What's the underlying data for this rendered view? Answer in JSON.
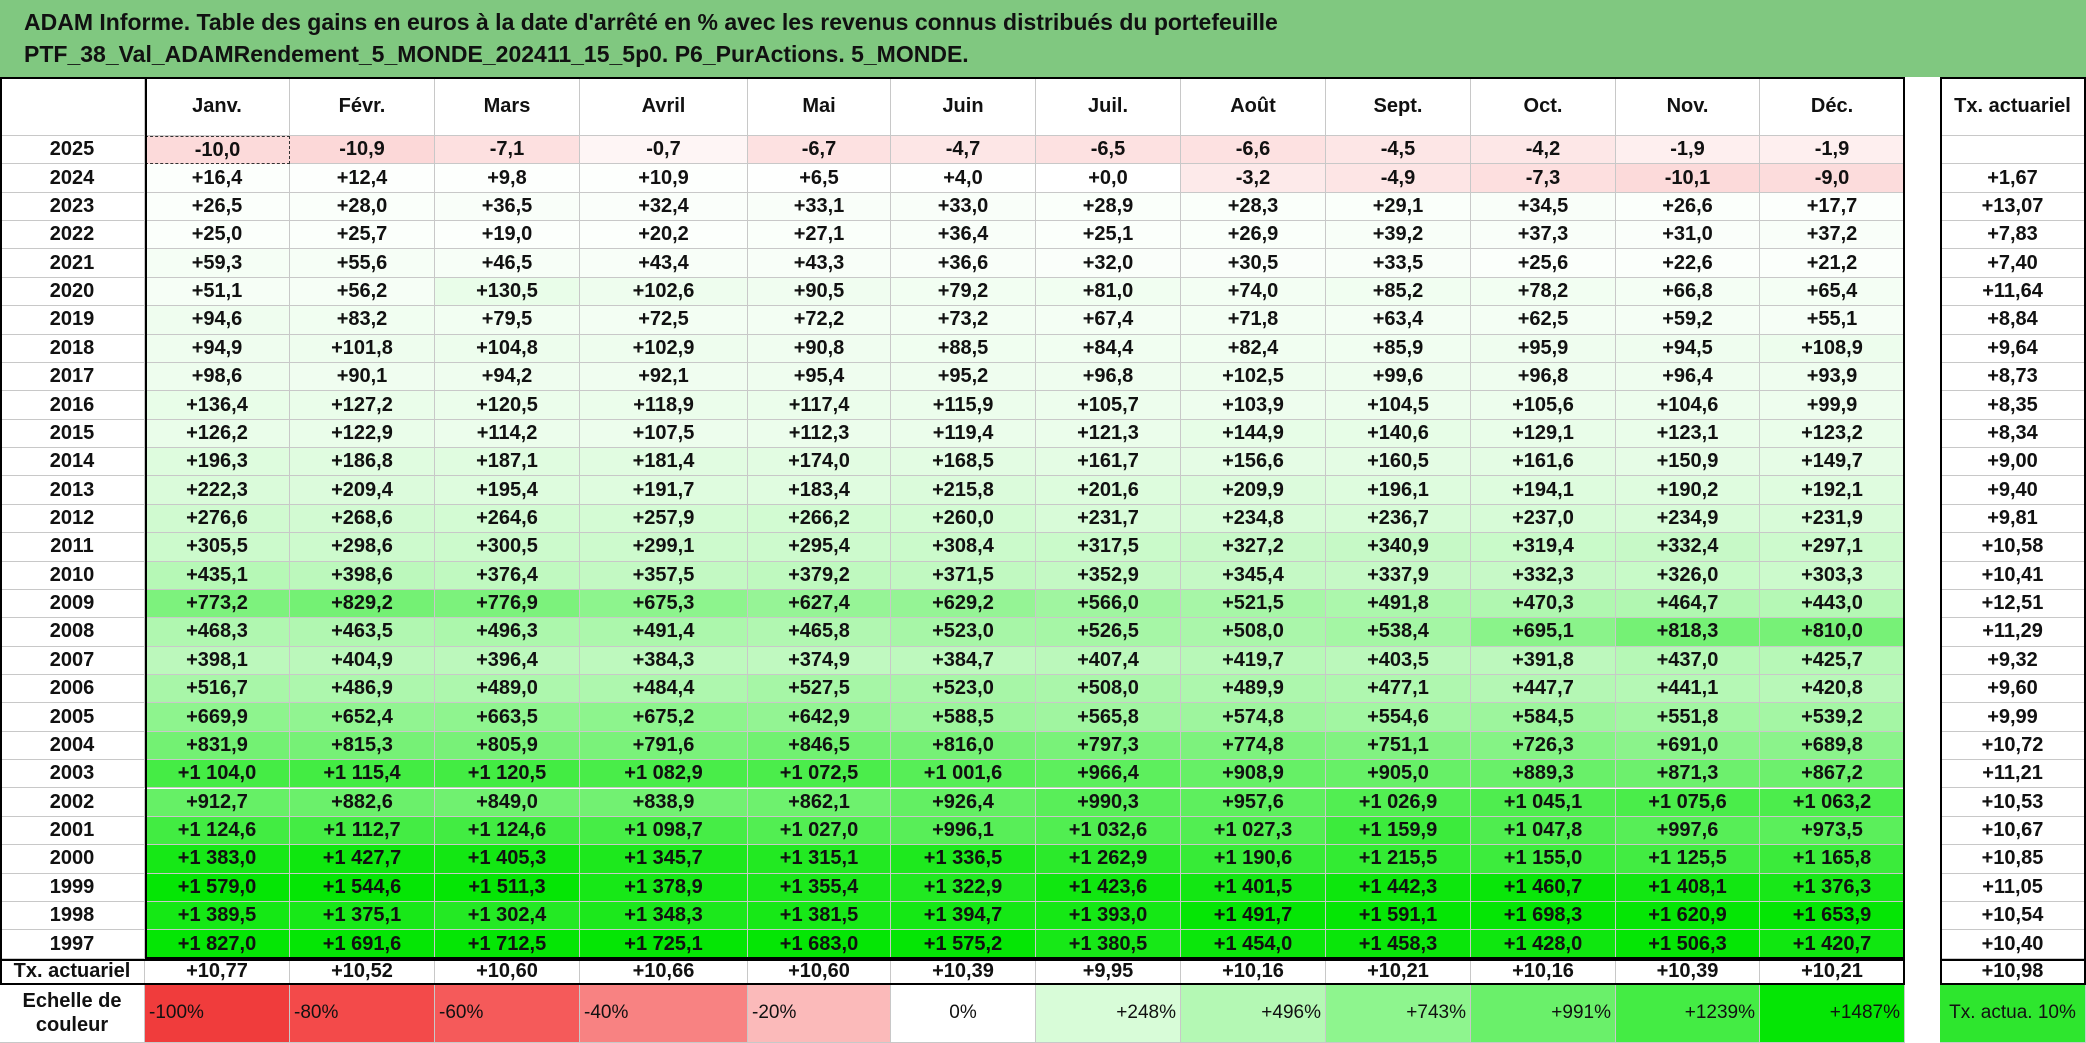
{
  "title": {
    "line1": "ADAM Informe. Table des gains en euros à la date d'arrêté en % avec les revenus connus distribués du portefeuille",
    "line2": "PTF_38_Val_ADAMRendement_5_MONDE_202411_15_5p0. P6_PurActions. 5_MONDE."
  },
  "header": {
    "months": [
      "Janv.",
      "Févr.",
      "Mars",
      "Avril",
      "Mai",
      "Juin",
      "Juil.",
      "Août",
      "Sept.",
      "Oct.",
      "Nov.",
      "Déc."
    ],
    "tx_label": "Tx. actuariel"
  },
  "rows": [
    {
      "year": "2025",
      "months": [
        "-10,0",
        "-10,9",
        "-7,1",
        "-0,7",
        "-6,7",
        "-4,7",
        "-6,5",
        "-6,6",
        "-4,5",
        "-4,2",
        "-1,9",
        "-1,9"
      ],
      "tx": null
    },
    {
      "year": "2024",
      "months": [
        "+16,4",
        "+12,4",
        "+9,8",
        "+10,9",
        "+6,5",
        "+4,0",
        "+0,0",
        "-3,2",
        "-4,9",
        "-7,3",
        "-10,1",
        "-9,0"
      ],
      "tx": "+1,67"
    },
    {
      "year": "2023",
      "months": [
        "+26,5",
        "+28,0",
        "+36,5",
        "+32,4",
        "+33,1",
        "+33,0",
        "+28,9",
        "+28,3",
        "+29,1",
        "+34,5",
        "+26,6",
        "+17,7"
      ],
      "tx": "+13,07"
    },
    {
      "year": "2022",
      "months": [
        "+25,0",
        "+25,7",
        "+19,0",
        "+20,2",
        "+27,1",
        "+36,4",
        "+25,1",
        "+26,9",
        "+39,2",
        "+37,3",
        "+31,0",
        "+37,2"
      ],
      "tx": "+7,83"
    },
    {
      "year": "2021",
      "months": [
        "+59,3",
        "+55,6",
        "+46,5",
        "+43,4",
        "+43,3",
        "+36,6",
        "+32,0",
        "+30,5",
        "+33,5",
        "+25,6",
        "+22,6",
        "+21,2"
      ],
      "tx": "+7,40"
    },
    {
      "year": "2020",
      "months": [
        "+51,1",
        "+56,2",
        "+130,5",
        "+102,6",
        "+90,5",
        "+79,2",
        "+81,0",
        "+74,0",
        "+85,2",
        "+78,2",
        "+66,8",
        "+65,4"
      ],
      "tx": "+11,64"
    },
    {
      "year": "2019",
      "months": [
        "+94,6",
        "+83,2",
        "+79,5",
        "+72,5",
        "+72,2",
        "+73,2",
        "+67,4",
        "+71,8",
        "+63,4",
        "+62,5",
        "+59,2",
        "+55,1"
      ],
      "tx": "+8,84"
    },
    {
      "year": "2018",
      "months": [
        "+94,9",
        "+101,8",
        "+104,8",
        "+102,9",
        "+90,8",
        "+88,5",
        "+84,4",
        "+82,4",
        "+85,9",
        "+95,9",
        "+94,5",
        "+108,9"
      ],
      "tx": "+9,64"
    },
    {
      "year": "2017",
      "months": [
        "+98,6",
        "+90,1",
        "+94,2",
        "+92,1",
        "+95,4",
        "+95,2",
        "+96,8",
        "+102,5",
        "+99,6",
        "+96,8",
        "+96,4",
        "+93,9"
      ],
      "tx": "+8,73"
    },
    {
      "year": "2016",
      "months": [
        "+136,4",
        "+127,2",
        "+120,5",
        "+118,9",
        "+117,4",
        "+115,9",
        "+105,7",
        "+103,9",
        "+104,5",
        "+105,6",
        "+104,6",
        "+99,9"
      ],
      "tx": "+8,35"
    },
    {
      "year": "2015",
      "months": [
        "+126,2",
        "+122,9",
        "+114,2",
        "+107,5",
        "+112,3",
        "+119,4",
        "+121,3",
        "+144,9",
        "+140,6",
        "+129,1",
        "+123,1",
        "+123,2"
      ],
      "tx": "+8,34"
    },
    {
      "year": "2014",
      "months": [
        "+196,3",
        "+186,8",
        "+187,1",
        "+181,4",
        "+174,0",
        "+168,5",
        "+161,7",
        "+156,6",
        "+160,5",
        "+161,6",
        "+150,9",
        "+149,7"
      ],
      "tx": "+9,00"
    },
    {
      "year": "2013",
      "months": [
        "+222,3",
        "+209,4",
        "+195,4",
        "+191,7",
        "+183,4",
        "+215,8",
        "+201,6",
        "+209,9",
        "+196,1",
        "+194,1",
        "+190,2",
        "+192,1"
      ],
      "tx": "+9,40"
    },
    {
      "year": "2012",
      "months": [
        "+276,6",
        "+268,6",
        "+264,6",
        "+257,9",
        "+266,2",
        "+260,0",
        "+231,7",
        "+234,8",
        "+236,7",
        "+237,0",
        "+234,9",
        "+231,9"
      ],
      "tx": "+9,81"
    },
    {
      "year": "2011",
      "months": [
        "+305,5",
        "+298,6",
        "+300,5",
        "+299,1",
        "+295,4",
        "+308,4",
        "+317,5",
        "+327,2",
        "+340,9",
        "+319,4",
        "+332,4",
        "+297,1"
      ],
      "tx": "+10,58"
    },
    {
      "year": "2010",
      "months": [
        "+435,1",
        "+398,6",
        "+376,4",
        "+357,5",
        "+379,2",
        "+371,5",
        "+352,9",
        "+345,4",
        "+337,9",
        "+332,3",
        "+326,0",
        "+303,3"
      ],
      "tx": "+10,41"
    },
    {
      "year": "2009",
      "months": [
        "+773,2",
        "+829,2",
        "+776,9",
        "+675,3",
        "+627,4",
        "+629,2",
        "+566,0",
        "+521,5",
        "+491,8",
        "+470,3",
        "+464,7",
        "+443,0"
      ],
      "tx": "+12,51"
    },
    {
      "year": "2008",
      "months": [
        "+468,3",
        "+463,5",
        "+496,3",
        "+491,4",
        "+465,8",
        "+523,0",
        "+526,5",
        "+508,0",
        "+538,4",
        "+695,1",
        "+818,3",
        "+810,0"
      ],
      "tx": "+11,29"
    },
    {
      "year": "2007",
      "months": [
        "+398,1",
        "+404,9",
        "+396,4",
        "+384,3",
        "+374,9",
        "+384,7",
        "+407,4",
        "+419,7",
        "+403,5",
        "+391,8",
        "+437,0",
        "+425,7"
      ],
      "tx": "+9,32"
    },
    {
      "year": "2006",
      "months": [
        "+516,7",
        "+486,9",
        "+489,0",
        "+484,4",
        "+527,5",
        "+523,0",
        "+508,0",
        "+489,9",
        "+477,1",
        "+447,7",
        "+441,1",
        "+420,8"
      ],
      "tx": "+9,60"
    },
    {
      "year": "2005",
      "months": [
        "+669,9",
        "+652,4",
        "+663,5",
        "+675,2",
        "+642,9",
        "+588,5",
        "+565,8",
        "+574,8",
        "+554,6",
        "+584,5",
        "+551,8",
        "+539,2"
      ],
      "tx": "+9,99"
    },
    {
      "year": "2004",
      "months": [
        "+831,9",
        "+815,3",
        "+805,9",
        "+791,6",
        "+846,5",
        "+816,0",
        "+797,3",
        "+774,8",
        "+751,1",
        "+726,3",
        "+691,0",
        "+689,8"
      ],
      "tx": "+10,72"
    },
    {
      "year": "2003",
      "months": [
        "+1 104,0",
        "+1 115,4",
        "+1 120,5",
        "+1 082,9",
        "+1 072,5",
        "+1 001,6",
        "+966,4",
        "+908,9",
        "+905,0",
        "+889,3",
        "+871,3",
        "+867,2"
      ],
      "tx": "+11,21"
    },
    {
      "year": "2002",
      "months": [
        "+912,7",
        "+882,6",
        "+849,0",
        "+838,9",
        "+862,1",
        "+926,4",
        "+990,3",
        "+957,6",
        "+1 026,9",
        "+1 045,1",
        "+1 075,6",
        "+1 063,2"
      ],
      "tx": "+10,53"
    },
    {
      "year": "2001",
      "months": [
        "+1 124,6",
        "+1 112,7",
        "+1 124,6",
        "+1 098,7",
        "+1 027,0",
        "+996,1",
        "+1 032,6",
        "+1 027,3",
        "+1 159,9",
        "+1 047,8",
        "+997,6",
        "+973,5"
      ],
      "tx": "+10,67"
    },
    {
      "year": "2000",
      "months": [
        "+1 383,0",
        "+1 427,7",
        "+1 405,3",
        "+1 345,7",
        "+1 315,1",
        "+1 336,5",
        "+1 262,9",
        "+1 190,6",
        "+1 215,5",
        "+1 155,0",
        "+1 125,5",
        "+1 165,8"
      ],
      "tx": "+10,85"
    },
    {
      "year": "1999",
      "months": [
        "+1 579,0",
        "+1 544,6",
        "+1 511,3",
        "+1 378,9",
        "+1 355,4",
        "+1 322,9",
        "+1 423,6",
        "+1 401,5",
        "+1 442,3",
        "+1 460,7",
        "+1 408,1",
        "+1 376,3"
      ],
      "tx": "+11,05"
    },
    {
      "year": "1998",
      "months": [
        "+1 389,5",
        "+1 375,1",
        "+1 302,4",
        "+1 348,3",
        "+1 381,5",
        "+1 394,7",
        "+1 393,0",
        "+1 491,7",
        "+1 591,1",
        "+1 698,3",
        "+1 620,9",
        "+1 653,9"
      ],
      "tx": "+10,54"
    },
    {
      "year": "1997",
      "months": [
        "+1 827,0",
        "+1 691,6",
        "+1 712,5",
        "+1 725,1",
        "+1 683,0",
        "+1 575,2",
        "+1 380,5",
        "+1 454,0",
        "+1 458,3",
        "+1 428,0",
        "+1 506,3",
        "+1 420,7"
      ],
      "tx": "+10,40"
    }
  ],
  "footer": {
    "label": "Tx. actuariel",
    "months": [
      "+10,77",
      "+10,52",
      "+10,60",
      "+10,66",
      "+10,60",
      "+10,39",
      "+9,95",
      "+10,16",
      "+10,21",
      "+10,16",
      "+10,39",
      "+10,21"
    ],
    "tx": "+10,98"
  },
  "scale": {
    "label": "Echelle de couleur",
    "items": [
      {
        "label": "-100%",
        "color": "#f03c3c"
      },
      {
        "label": "-80%",
        "color": "#f34a4a"
      },
      {
        "label": "-60%",
        "color": "#f55a5a"
      },
      {
        "label": "-40%",
        "color": "#f88282"
      },
      {
        "label": "-20%",
        "color": "#fbbaba"
      },
      {
        "label": "0%",
        "color": "#ffffff"
      },
      {
        "label": "+248%",
        "color": "#d8fcd8"
      },
      {
        "label": "+496%",
        "color": "#b4f8b4"
      },
      {
        "label": "+743%",
        "color": "#8ef58e"
      },
      {
        "label": "+991%",
        "color": "#6af06a"
      },
      {
        "label": "+1239%",
        "color": "#44ec44"
      },
      {
        "label": "+1487%",
        "color": "#05e605"
      }
    ],
    "tx": {
      "label": "Tx. actua. 10%",
      "color": "#2ee62e"
    }
  }
}
